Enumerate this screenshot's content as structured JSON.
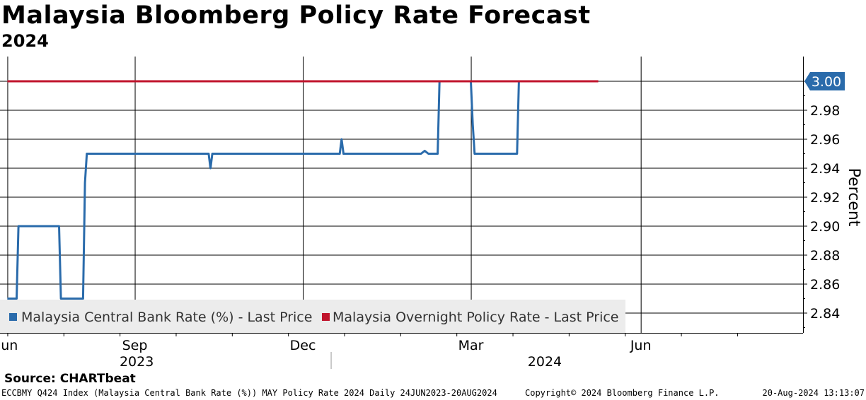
{
  "header": {
    "title": "Malaysia Bloomberg Policy Rate Forecast",
    "subtitle": "2024"
  },
  "source": "Source: CHARTbeat",
  "footer": {
    "left": "ECCBMY Q424 Index (Malaysia Central Bank Rate (%)) MAY Policy Rate 2024  Daily 24JUN2023-20AUG2024",
    "middle": "Copyright© 2024 Bloomberg Finance L.P.",
    "right": "20-Aug-2024 13:13:07"
  },
  "colors": {
    "series_blue": "#2a6bab",
    "series_red": "#c0142c",
    "grid": "#000000",
    "legend_bg": "#ececec"
  },
  "chart_data": {
    "type": "line",
    "title": "Malaysia Bloomberg Policy Rate Forecast",
    "subtitle": "2024",
    "ylabel": "Percent",
    "ylim": [
      2.83,
      3.015
    ],
    "yticks": [
      "2.84",
      "2.86",
      "2.88",
      "2.90",
      "2.92",
      "2.94",
      "2.96",
      "2.98"
    ],
    "last_value_label": "3.00",
    "x_start": "24 Jun 2023",
    "x_end": "20 Aug 2024",
    "x_month_ticks": [
      {
        "label": "Jun",
        "day": 0
      },
      {
        "label": "Sep",
        "day": 69
      },
      {
        "label": "Dec",
        "day": 160
      },
      {
        "label": "Mar",
        "day": 251
      },
      {
        "label": "Jun",
        "day": 343
      }
    ],
    "x_year_labels": [
      {
        "label": "2023",
        "day": 70
      },
      {
        "label": "2024",
        "day": 291
      }
    ],
    "legend": [
      {
        "label": "Malaysia Central Bank Rate (%) - Last Price",
        "color": "#2a6bab"
      },
      {
        "label": "Malaysia Overnight Policy Rate - Last Price",
        "color": "#c0142c"
      }
    ],
    "series": [
      {
        "name": "Malaysia Central Bank Rate (%) - Last Price",
        "color": "#2a6bab",
        "points": [
          [
            0,
            2.85
          ],
          [
            5,
            2.85
          ],
          [
            6,
            2.9
          ],
          [
            28,
            2.9
          ],
          [
            29,
            2.85
          ],
          [
            41,
            2.85
          ],
          [
            42,
            2.93
          ],
          [
            43,
            2.95
          ],
          [
            109,
            2.95
          ],
          [
            110,
            2.94
          ],
          [
            111,
            2.95
          ],
          [
            180,
            2.95
          ],
          [
            181,
            2.96
          ],
          [
            182,
            2.95
          ],
          [
            224,
            2.95
          ],
          [
            226,
            2.952
          ],
          [
            228,
            2.95
          ],
          [
            233,
            2.95
          ],
          [
            234,
            3.0
          ],
          [
            251,
            3.0
          ],
          [
            252,
            2.97
          ],
          [
            253,
            2.95
          ],
          [
            276,
            2.95
          ],
          [
            277,
            3.0
          ],
          [
            285,
            3.0
          ]
        ]
      },
      {
        "name": "Malaysia Overnight Policy Rate - Last Price",
        "color": "#c0142c",
        "points": [
          [
            0,
            3.0
          ],
          [
            320,
            3.0
          ]
        ]
      }
    ]
  }
}
